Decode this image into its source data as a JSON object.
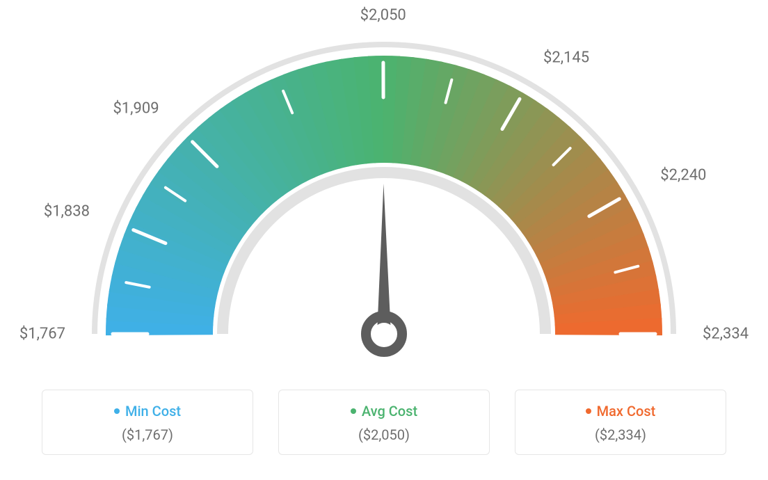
{
  "gauge": {
    "type": "gauge",
    "min_value": 1767,
    "max_value": 2334,
    "avg_value": 2050,
    "needle_value": 2050,
    "tick_values": [
      1767,
      1838,
      1909,
      2050,
      2145,
      2240,
      2334
    ],
    "tick_labels": [
      "$1,767",
      "$1,838",
      "$1,909",
      "$2,050",
      "$2,145",
      "$2,240",
      "$2,334"
    ],
    "start_angle_deg": 180,
    "end_angle_deg": 0,
    "colors": {
      "min": "#3fb0e8",
      "avg": "#4bb36f",
      "max": "#f0692e",
      "outer_ring": "#e2e2e2",
      "inner_ring": "#e2e2e2",
      "tick_mark": "#ffffff",
      "needle": "#5d5d5d",
      "label_text": "#6e6e6e",
      "background": "#ffffff"
    },
    "geometry": {
      "outer_radius": 420,
      "arc_outer_r": 400,
      "arc_inner_r": 246,
      "ring_outer_width": 8,
      "ring_inner_width": 16,
      "tick_outer_r": 390,
      "tick_inner_r": 340,
      "subtick_outer_r": 378,
      "subtick_inner_r": 344,
      "label_fontsize": 22
    }
  },
  "legend": {
    "min": {
      "label": "Min Cost",
      "value": "($1,767)",
      "color": "#3fb0e8"
    },
    "avg": {
      "label": "Avg Cost",
      "value": "($2,050)",
      "color": "#4bb36f"
    },
    "max": {
      "label": "Max Cost",
      "value": "($2,334)",
      "color": "#f0692e"
    }
  }
}
